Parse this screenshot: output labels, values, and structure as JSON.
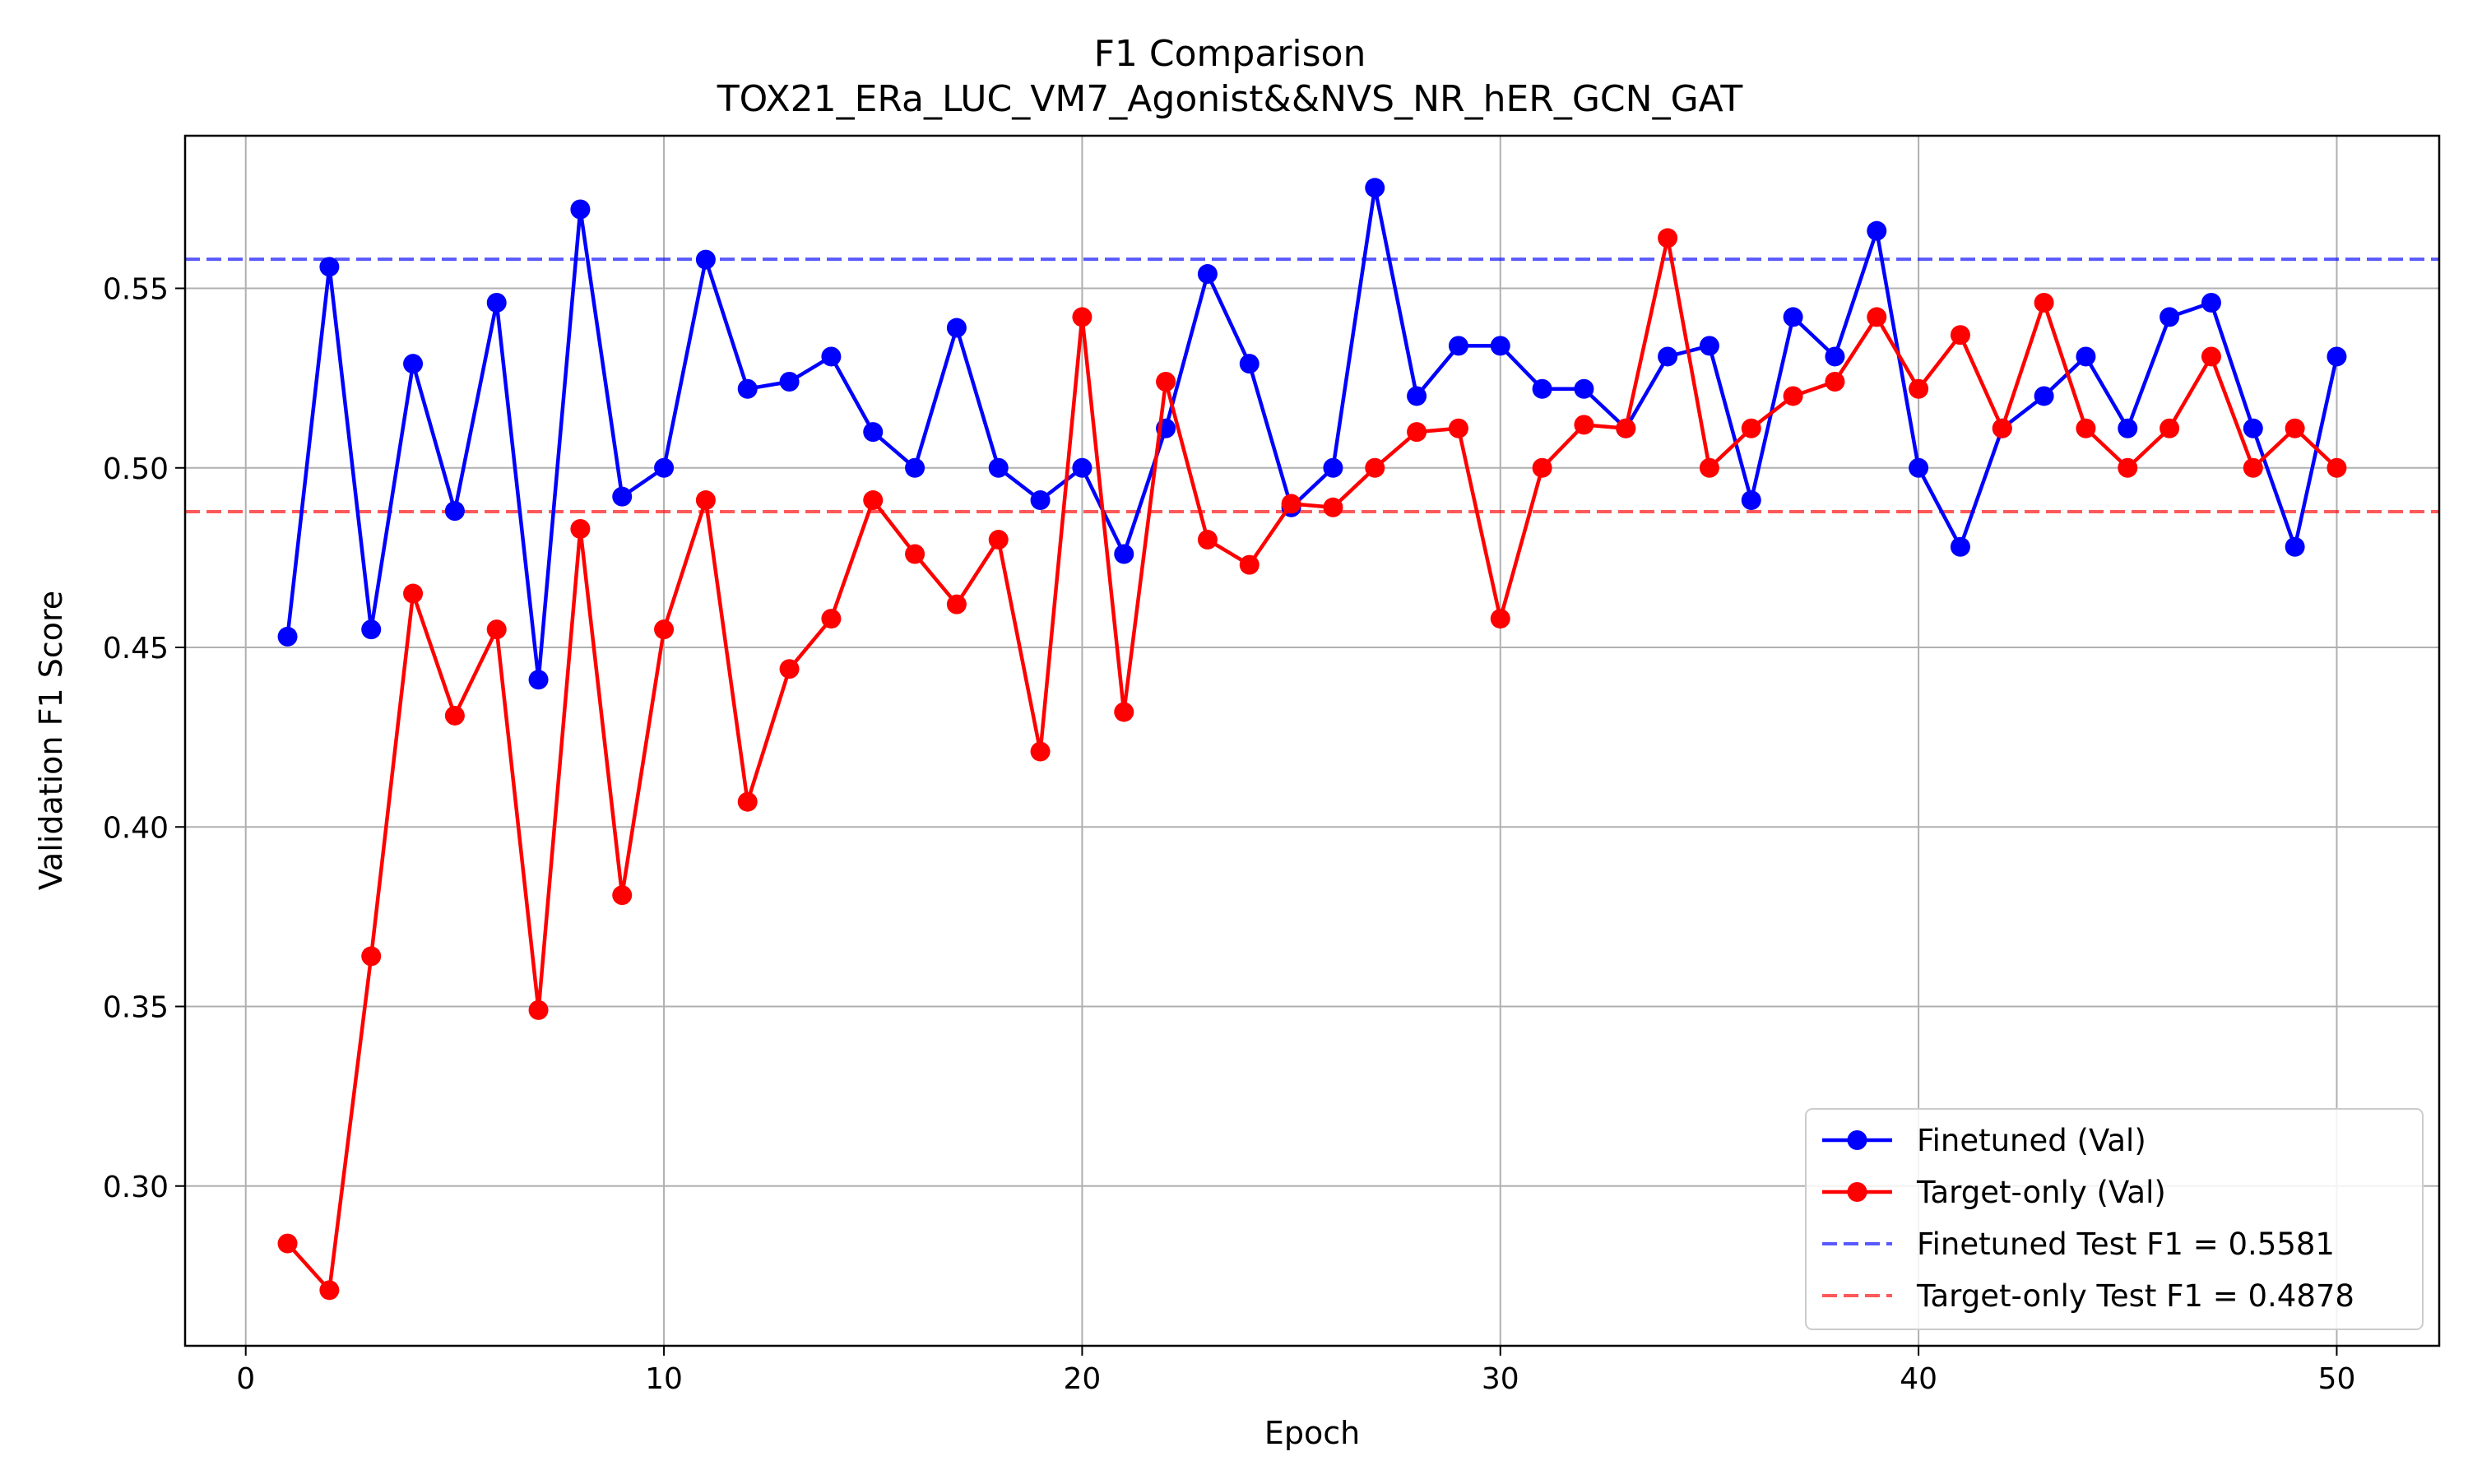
{
  "chart_data": {
    "type": "line",
    "title": "F1 Comparison",
    "subtitle": "TOX21_ERa_LUC_VM7_Agonist&&NVS_NR_hER_GCN_GAT",
    "xlabel": "Epoch",
    "ylabel": "Validation F1 Score",
    "xlim": [
      -1.45,
      52.45
    ],
    "ylim": [
      0.2555,
      0.5925
    ],
    "xticks": [
      0,
      10,
      20,
      30,
      40,
      50
    ],
    "yticks": [
      0.3,
      0.35,
      0.4,
      0.45,
      0.5,
      0.55
    ],
    "xtick_labels": [
      "0",
      "10",
      "20",
      "30",
      "40",
      "50"
    ],
    "ytick_labels": [
      "0.30",
      "0.35",
      "0.40",
      "0.45",
      "0.50",
      "0.55"
    ],
    "grid": true,
    "legend_position": "lower-right",
    "x": [
      1,
      2,
      3,
      4,
      5,
      6,
      7,
      8,
      9,
      10,
      11,
      12,
      13,
      14,
      15,
      16,
      17,
      18,
      19,
      20,
      21,
      22,
      23,
      24,
      25,
      26,
      27,
      28,
      29,
      30,
      31,
      32,
      33,
      34,
      35,
      36,
      37,
      38,
      39,
      40,
      41,
      42,
      43,
      44,
      45,
      46,
      47,
      48,
      49,
      50
    ],
    "series": [
      {
        "name": "Finetuned (Val)",
        "color": "#0000ff",
        "values": [
          0.453,
          0.556,
          0.455,
          0.529,
          0.488,
          0.546,
          0.441,
          0.572,
          0.492,
          0.5,
          0.558,
          0.522,
          0.524,
          0.531,
          0.51,
          0.5,
          0.539,
          0.5,
          0.491,
          0.5,
          0.476,
          0.511,
          0.554,
          0.529,
          0.489,
          0.5,
          0.578,
          0.52,
          0.534,
          0.534,
          0.522,
          0.522,
          0.511,
          0.531,
          0.534,
          0.491,
          0.542,
          0.531,
          0.566,
          0.5,
          0.478,
          0.511,
          0.52,
          0.531,
          0.511,
          0.542,
          0.546,
          0.511,
          0.478,
          0.531
        ]
      },
      {
        "name": "Target-only (Val)",
        "color": "#ff0000",
        "values": [
          0.284,
          0.271,
          0.364,
          0.465,
          0.431,
          0.455,
          0.349,
          0.483,
          0.381,
          0.455,
          0.491,
          0.407,
          0.444,
          0.458,
          0.491,
          0.476,
          0.462,
          0.48,
          0.421,
          0.542,
          0.432,
          0.524,
          0.48,
          0.473,
          0.49,
          0.489,
          0.5,
          0.51,
          0.511,
          0.458,
          0.5,
          0.512,
          0.511,
          0.564,
          0.5,
          0.511,
          0.52,
          0.524,
          0.542,
          0.522,
          0.537,
          0.511,
          0.546,
          0.511,
          0.5,
          0.511,
          0.531,
          0.5,
          0.511,
          0.5
        ]
      }
    ],
    "reference_lines": [
      {
        "name": "Finetuned Test F1 = 0.5581",
        "value": 0.5581,
        "color": "#0000ff"
      },
      {
        "name": "Target-only Test F1 = 0.4878",
        "value": 0.4878,
        "color": "#ff0000"
      }
    ]
  }
}
